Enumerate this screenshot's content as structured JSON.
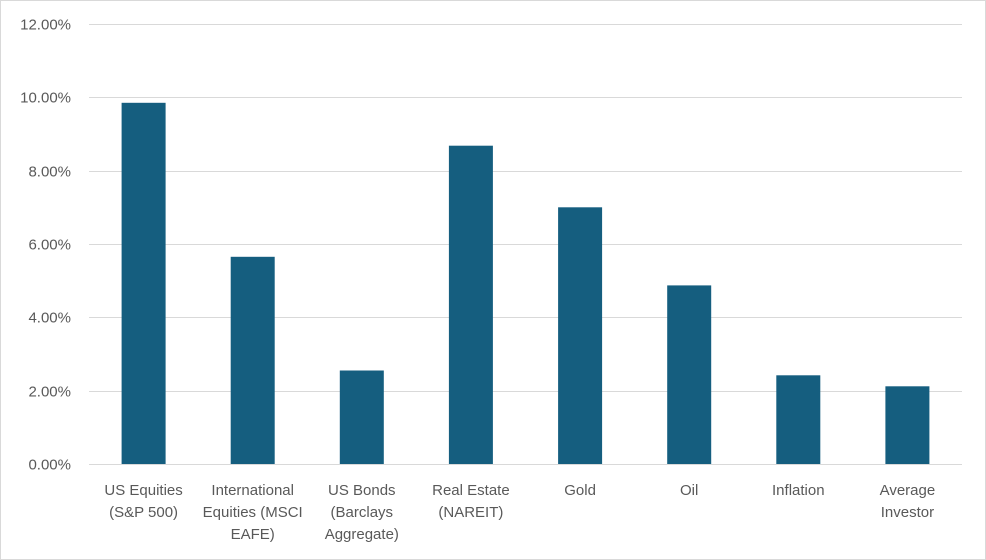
{
  "chart_data": {
    "type": "bar",
    "categories": [
      [
        "US Equities",
        "(S&P 500)"
      ],
      [
        "International",
        "Equities (MSCI",
        "EAFE)"
      ],
      [
        "US Bonds",
        "(Barclays",
        "Aggregate)"
      ],
      [
        "Real Estate",
        "(NAREIT)"
      ],
      [
        "Gold"
      ],
      [
        "Oil"
      ],
      [
        "Inflation"
      ],
      [
        "Average",
        "Investor"
      ]
    ],
    "series": [
      {
        "values": [
          0.0985,
          0.0565,
          0.0255,
          0.0868,
          0.07,
          0.0487,
          0.0242,
          0.0212
        ],
        "color": "#155e7f"
      }
    ],
    "yticks": [
      "0.00%",
      "2.00%",
      "4.00%",
      "6.00%",
      "8.00%",
      "10.00%",
      "12.00%"
    ],
    "ylim": [
      0,
      0.12
    ],
    "grid": true,
    "legend": "none"
  }
}
